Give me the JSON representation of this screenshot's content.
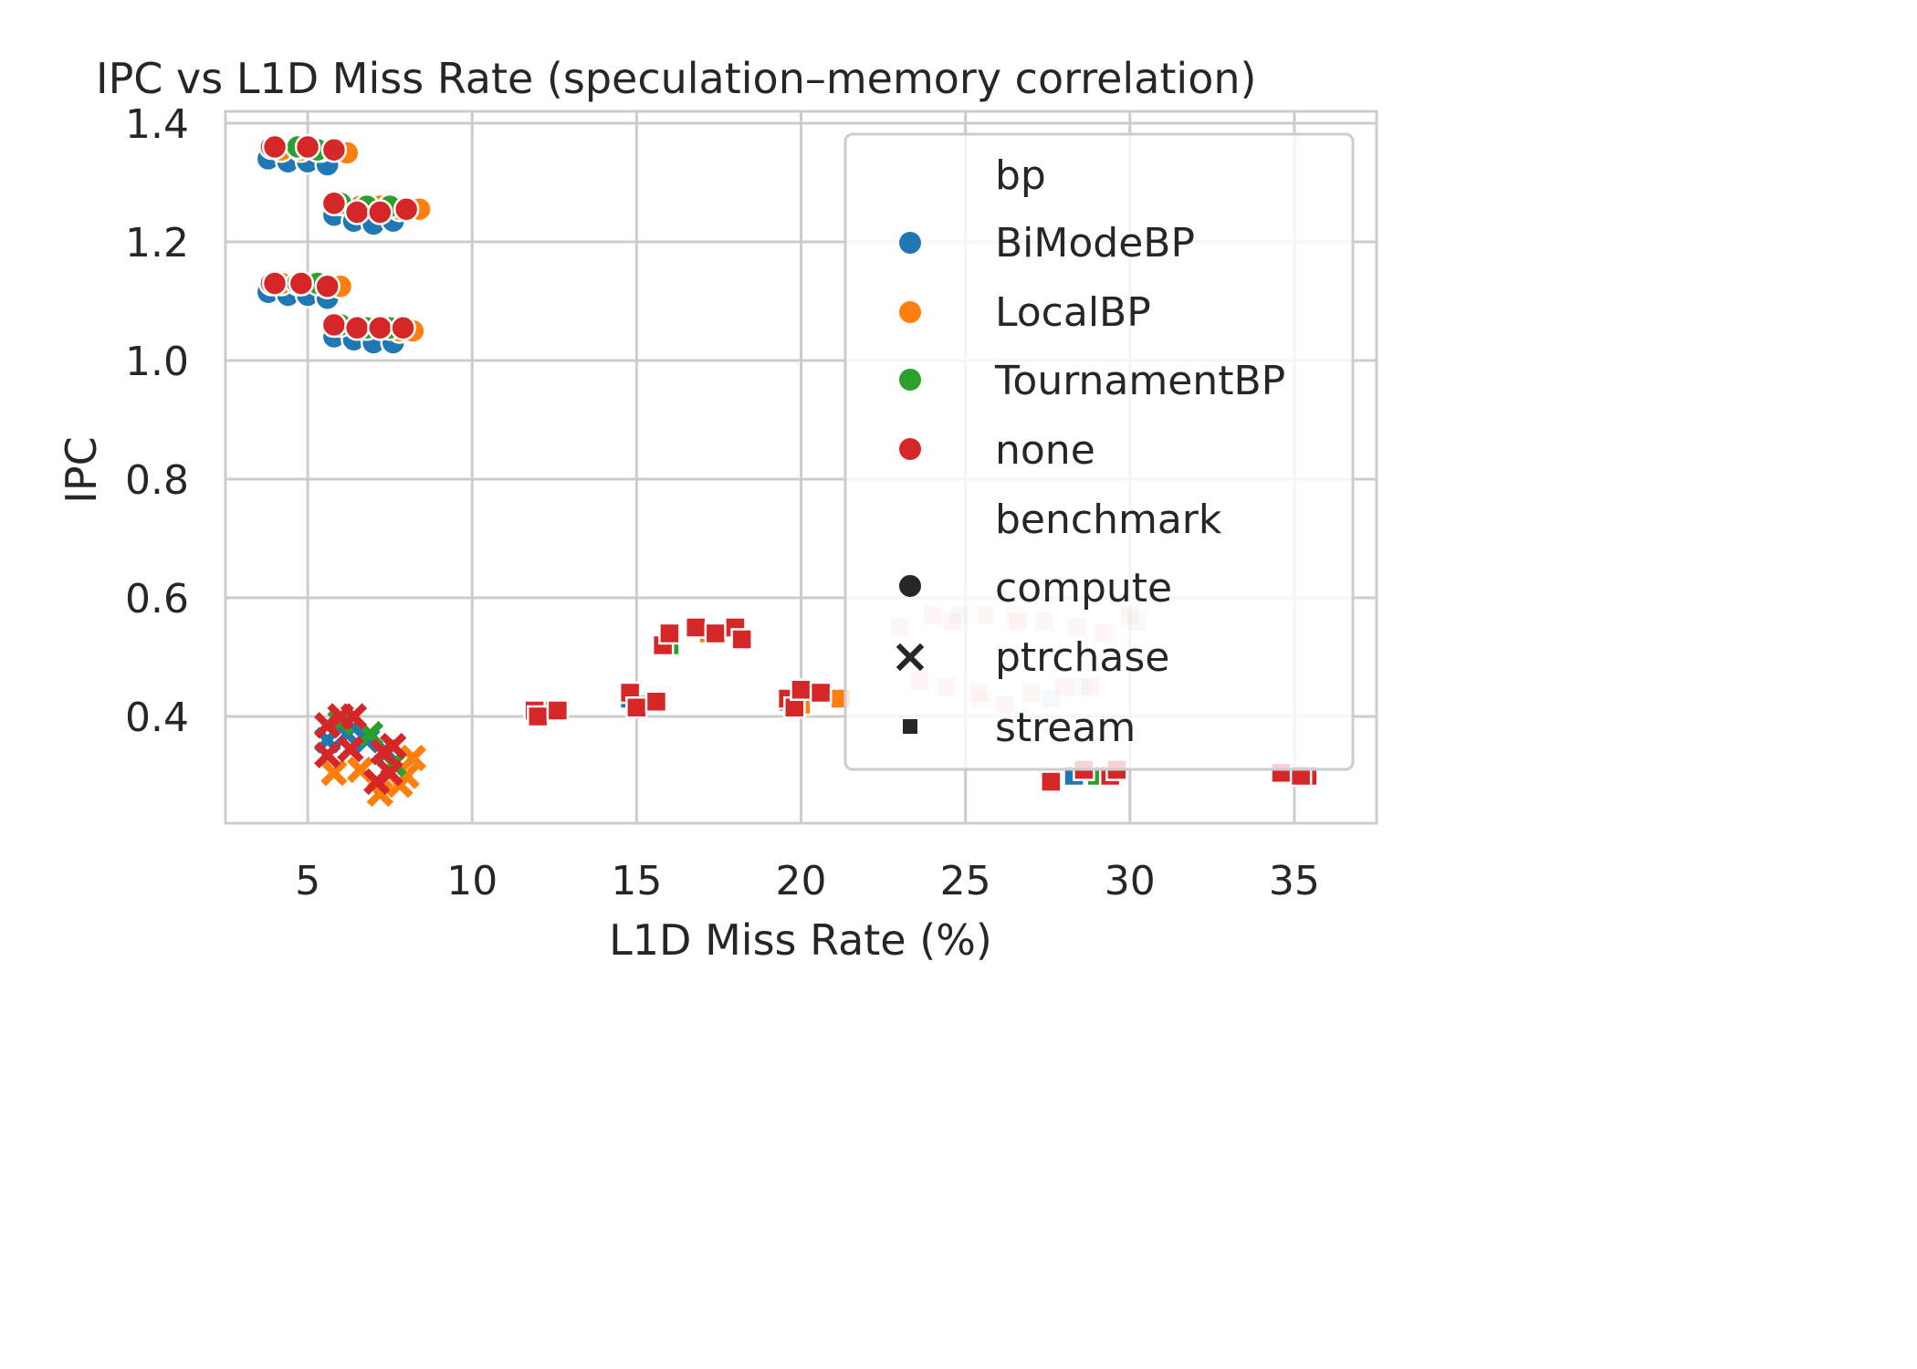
{
  "chart_data": {
    "type": "scatter",
    "title": "IPC vs L1D Miss Rate (speculation–memory correlation)",
    "xlabel": "L1D Miss Rate (%)",
    "ylabel": "IPC",
    "xlim": [
      2.5,
      37.5
    ],
    "ylim": [
      0.22,
      1.42
    ],
    "xticks": [
      5,
      10,
      15,
      20,
      25,
      30,
      35
    ],
    "yticks": [
      0.4,
      0.6,
      0.8,
      1.0,
      1.2,
      1.4
    ],
    "xtick_labels": [
      "5",
      "10",
      "15",
      "20",
      "25",
      "30",
      "35"
    ],
    "ytick_labels": [
      "0.4",
      "0.6",
      "0.8",
      "1.0",
      "1.2",
      "1.4"
    ],
    "grid": true,
    "legend_position": "right",
    "legend": {
      "hue_title": "bp",
      "hue": [
        {
          "name": "BiModeBP",
          "color": "#1f77b4"
        },
        {
          "name": "LocalBP",
          "color": "#ff7f0e"
        },
        {
          "name": "TournamentBP",
          "color": "#2ca02c"
        },
        {
          "name": "none",
          "color": "#d62728"
        }
      ],
      "style_title": "benchmark",
      "style": [
        {
          "name": "compute",
          "marker": "circle"
        },
        {
          "name": "ptrchase",
          "marker": "x"
        },
        {
          "name": "stream",
          "marker": "square"
        }
      ]
    },
    "series": [
      {
        "bp": "BiModeBP",
        "benchmark": "compute",
        "points": [
          [
            3.8,
            1.34
          ],
          [
            4.4,
            1.335
          ],
          [
            5.0,
            1.335
          ],
          [
            5.6,
            1.33
          ],
          [
            3.8,
            1.115
          ],
          [
            4.4,
            1.11
          ],
          [
            5.0,
            1.11
          ],
          [
            5.6,
            1.105
          ],
          [
            5.8,
            1.245
          ],
          [
            6.4,
            1.235
          ],
          [
            7.0,
            1.23
          ],
          [
            7.6,
            1.235
          ],
          [
            5.8,
            1.04
          ],
          [
            6.4,
            1.035
          ],
          [
            7.0,
            1.03
          ],
          [
            7.6,
            1.03
          ]
        ]
      },
      {
        "bp": "LocalBP",
        "benchmark": "compute",
        "points": [
          [
            4.2,
            1.355
          ],
          [
            4.8,
            1.355
          ],
          [
            5.4,
            1.355
          ],
          [
            6.2,
            1.35
          ],
          [
            4.2,
            1.13
          ],
          [
            4.8,
            1.13
          ],
          [
            5.4,
            1.13
          ],
          [
            6.0,
            1.125
          ],
          [
            6.6,
            1.26
          ],
          [
            7.2,
            1.26
          ],
          [
            7.8,
            1.255
          ],
          [
            8.4,
            1.255
          ],
          [
            6.6,
            1.055
          ],
          [
            7.2,
            1.055
          ],
          [
            7.8,
            1.05
          ],
          [
            8.2,
            1.05
          ]
        ]
      },
      {
        "bp": "TournamentBP",
        "benchmark": "compute",
        "points": [
          [
            4.0,
            1.36
          ],
          [
            4.7,
            1.36
          ],
          [
            5.3,
            1.355
          ],
          [
            4.0,
            1.13
          ],
          [
            4.7,
            1.13
          ],
          [
            5.3,
            1.13
          ],
          [
            6.0,
            1.265
          ],
          [
            6.8,
            1.26
          ],
          [
            7.5,
            1.26
          ],
          [
            6.0,
            1.06
          ],
          [
            6.8,
            1.055
          ],
          [
            7.5,
            1.055
          ]
        ]
      },
      {
        "bp": "none",
        "benchmark": "compute",
        "points": [
          [
            3.9,
            1.36
          ],
          [
            4.0,
            1.36
          ],
          [
            5.0,
            1.36
          ],
          [
            5.8,
            1.355
          ],
          [
            3.9,
            1.13
          ],
          [
            4.0,
            1.13
          ],
          [
            4.8,
            1.13
          ],
          [
            5.6,
            1.125
          ],
          [
            5.8,
            1.265
          ],
          [
            6.5,
            1.25
          ],
          [
            7.2,
            1.25
          ],
          [
            8.0,
            1.255
          ],
          [
            5.8,
            1.06
          ],
          [
            6.5,
            1.055
          ],
          [
            7.2,
            1.055
          ],
          [
            7.9,
            1.055
          ]
        ]
      },
      {
        "bp": "BiModeBP",
        "benchmark": "ptrchase",
        "points": [
          [
            5.6,
            0.36
          ],
          [
            6.2,
            0.37
          ],
          [
            6.8,
            0.36
          ],
          [
            7.4,
            0.34
          ]
        ]
      },
      {
        "bp": "LocalBP",
        "benchmark": "ptrchase",
        "points": [
          [
            5.8,
            0.305
          ],
          [
            6.6,
            0.31
          ],
          [
            7.2,
            0.27
          ],
          [
            7.8,
            0.285
          ],
          [
            8.2,
            0.33
          ],
          [
            8.0,
            0.3
          ]
        ]
      },
      {
        "bp": "TournamentBP",
        "benchmark": "ptrchase",
        "points": [
          [
            6.0,
            0.39
          ],
          [
            6.9,
            0.37
          ],
          [
            7.6,
            0.32
          ]
        ]
      },
      {
        "bp": "none",
        "benchmark": "ptrchase",
        "points": [
          [
            5.6,
            0.385
          ],
          [
            6.0,
            0.4
          ],
          [
            6.4,
            0.4
          ],
          [
            5.6,
            0.335
          ],
          [
            6.3,
            0.345
          ],
          [
            7.3,
            0.34
          ],
          [
            7.6,
            0.35
          ],
          [
            7.5,
            0.305
          ],
          [
            7.1,
            0.29
          ]
        ]
      },
      {
        "bp": "BiModeBP",
        "benchmark": "stream",
        "points": [
          [
            14.8,
            0.43
          ],
          [
            19.6,
            0.425
          ],
          [
            28.3,
            0.3
          ],
          [
            34.8,
            0.305
          ],
          [
            27.6,
            0.43
          ],
          [
            24.8,
            0.57
          ]
        ]
      },
      {
        "bp": "LocalBP",
        "benchmark": "stream",
        "points": [
          [
            15.0,
            0.42
          ],
          [
            17.2,
            0.54
          ],
          [
            20.0,
            0.42
          ],
          [
            21.2,
            0.43
          ],
          [
            25.5,
            0.43
          ],
          [
            26.5,
            0.57
          ]
        ]
      },
      {
        "bp": "TournamentBP",
        "benchmark": "stream",
        "points": [
          [
            12.2,
            0.41
          ],
          [
            16.0,
            0.52
          ],
          [
            20.6,
            0.44
          ],
          [
            29.0,
            0.3
          ],
          [
            28.5,
            0.45
          ],
          [
            30.2,
            0.56
          ]
        ]
      },
      {
        "bp": "none",
        "benchmark": "stream",
        "points": [
          [
            11.9,
            0.41
          ],
          [
            12.0,
            0.4
          ],
          [
            12.6,
            0.41
          ],
          [
            14.8,
            0.44
          ],
          [
            15.0,
            0.415
          ],
          [
            15.6,
            0.425
          ],
          [
            15.8,
            0.52
          ],
          [
            16.0,
            0.54
          ],
          [
            16.8,
            0.55
          ],
          [
            17.4,
            0.54
          ],
          [
            18.0,
            0.55
          ],
          [
            18.2,
            0.53
          ],
          [
            19.6,
            0.43
          ],
          [
            19.8,
            0.415
          ],
          [
            20.0,
            0.445
          ],
          [
            20.6,
            0.44
          ],
          [
            27.6,
            0.29
          ],
          [
            28.6,
            0.31
          ],
          [
            29.4,
            0.3
          ],
          [
            35.4,
            0.3
          ],
          [
            23.0,
            0.55
          ],
          [
            24.0,
            0.57
          ],
          [
            24.6,
            0.56
          ],
          [
            25.6,
            0.57
          ],
          [
            26.6,
            0.56
          ],
          [
            27.4,
            0.56
          ],
          [
            28.4,
            0.55
          ],
          [
            29.2,
            0.54
          ],
          [
            30.0,
            0.57
          ],
          [
            23.6,
            0.46
          ],
          [
            24.4,
            0.45
          ],
          [
            25.4,
            0.44
          ],
          [
            26.2,
            0.42
          ],
          [
            27.0,
            0.44
          ],
          [
            28.0,
            0.45
          ],
          [
            28.8,
            0.45
          ],
          [
            29.6,
            0.31
          ],
          [
            34.6,
            0.305
          ],
          [
            35.2,
            0.3
          ]
        ]
      }
    ]
  }
}
